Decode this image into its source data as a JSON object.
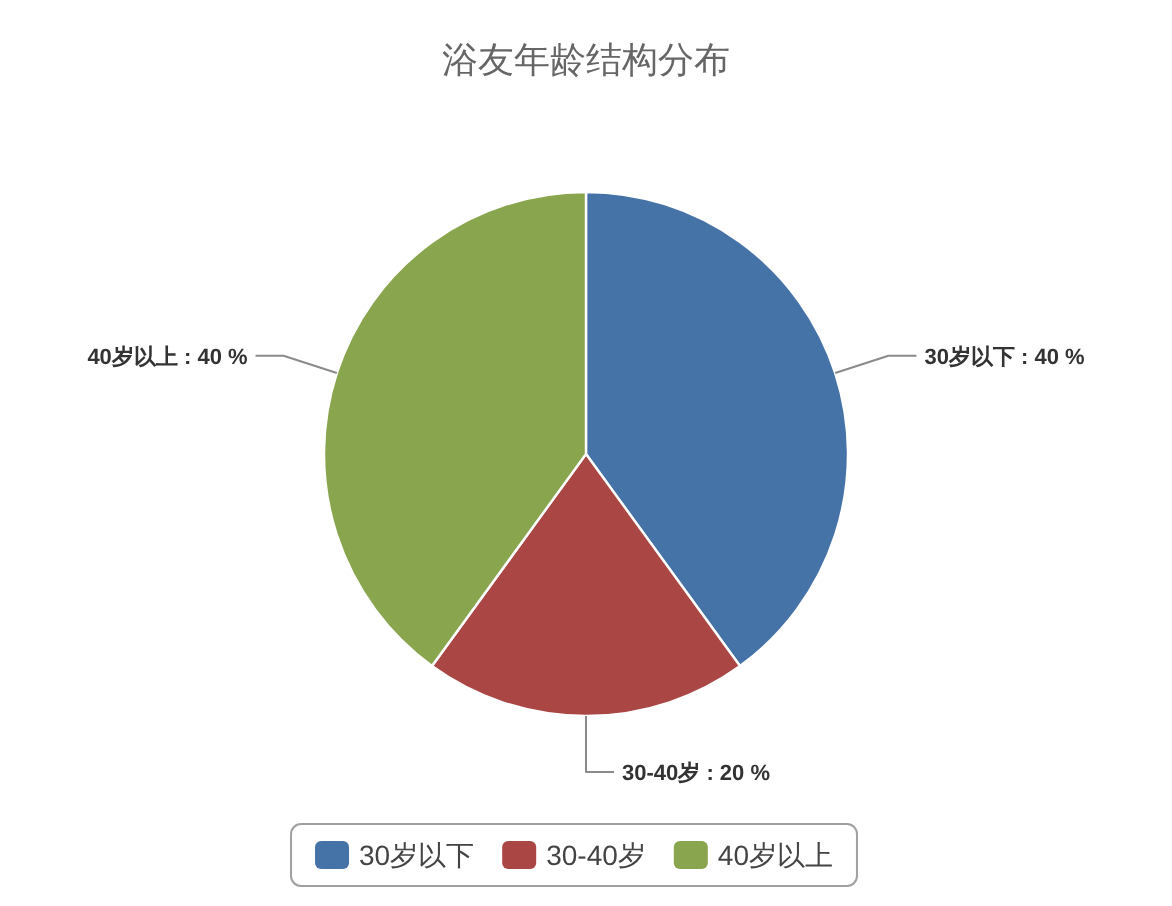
{
  "chart_data": {
    "type": "pie",
    "title": "浴友年龄结构分布",
    "categories": [
      "30岁以下",
      "30-40岁",
      "40岁以上"
    ],
    "values": [
      40,
      20,
      40
    ],
    "colors": [
      "#4572a7",
      "#aa4643",
      "#89a54e"
    ],
    "value_labels": [
      "30岁以下 : 40 %",
      "30-40岁 : 20 %",
      "40岁以上 : 40 %"
    ],
    "legend": "bottom"
  }
}
